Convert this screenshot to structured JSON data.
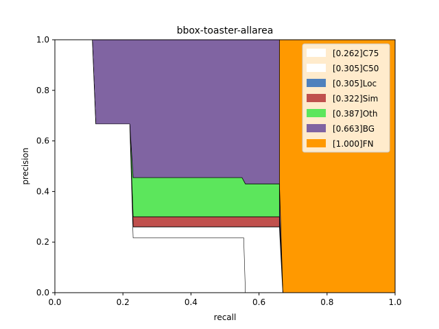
{
  "chart_data": {
    "type": "area",
    "title": "bbox-toaster-allarea",
    "xlabel": "recall",
    "ylabel": "precision",
    "xlim": [
      0,
      1
    ],
    "ylim": [
      0,
      1
    ],
    "xticks": [
      "0.0",
      "0.2",
      "0.4",
      "0.6",
      "0.8",
      "1.0"
    ],
    "yticks": [
      "0.0",
      "0.2",
      "0.4",
      "0.6",
      "0.8",
      "1.0"
    ],
    "grid": false,
    "legend_position": "top-right",
    "series": [
      {
        "name": "[1.000]FN",
        "color": "#ff9900",
        "x": [
          0,
          1
        ],
        "y": [
          1,
          1
        ]
      },
      {
        "name": "[0.663]BG",
        "color": "#8064a2",
        "x": [
          0,
          0.11,
          0.12,
          0.22,
          0.23,
          0.55,
          0.56,
          0.66,
          0.66,
          0.67
        ],
        "y": [
          1,
          1,
          1,
          1,
          1,
          1,
          1,
          1,
          0.43,
          0.0
        ]
      },
      {
        "name": "[0.387]Oth",
        "color": "#5ce65c",
        "x": [
          0,
          0.11,
          0.12,
          0.22,
          0.23,
          0.55,
          0.56,
          0.66,
          0.66,
          0.67
        ],
        "y": [
          1,
          1,
          0.667,
          0.667,
          0.455,
          0.455,
          0.43,
          0.43,
          0.3,
          0.0
        ]
      },
      {
        "name": "[0.322]Sim",
        "color": "#c0504d",
        "x": [
          0,
          0.11,
          0.12,
          0.22,
          0.23,
          0.55,
          0.56,
          0.66,
          0.66,
          0.67
        ],
        "y": [
          1,
          1,
          0.667,
          0.667,
          0.3,
          0.3,
          0.3,
          0.3,
          0.26,
          0.0
        ]
      },
      {
        "name": "[0.305]Loc",
        "color": "#4f81bd",
        "x": [
          0,
          0.11,
          0.12,
          0.22,
          0.23,
          0.55,
          0.56,
          0.66,
          0.66,
          0.67
        ],
        "y": [
          1,
          1,
          0.667,
          0.667,
          0.26,
          0.26,
          0.26,
          0.26,
          0.26,
          0.0
        ]
      },
      {
        "name": "[0.305]C50",
        "color": "#ffffff",
        "x": [
          0,
          0.11,
          0.12,
          0.22,
          0.23,
          0.55,
          0.56,
          0.66,
          0.66,
          0.67
        ],
        "y": [
          1,
          1,
          0.667,
          0.667,
          0.26,
          0.26,
          0.26,
          0.26,
          0.26,
          0.0
        ]
      },
      {
        "name": "[0.262]C75",
        "color": "#ffffff",
        "x": [
          0,
          0.11,
          0.12,
          0.22,
          0.23,
          0.55,
          0.555,
          0.56,
          0.56
        ],
        "y": [
          1,
          1,
          0.667,
          0.667,
          0.217,
          0.217,
          0.217,
          0.0,
          0.0
        ]
      }
    ]
  }
}
